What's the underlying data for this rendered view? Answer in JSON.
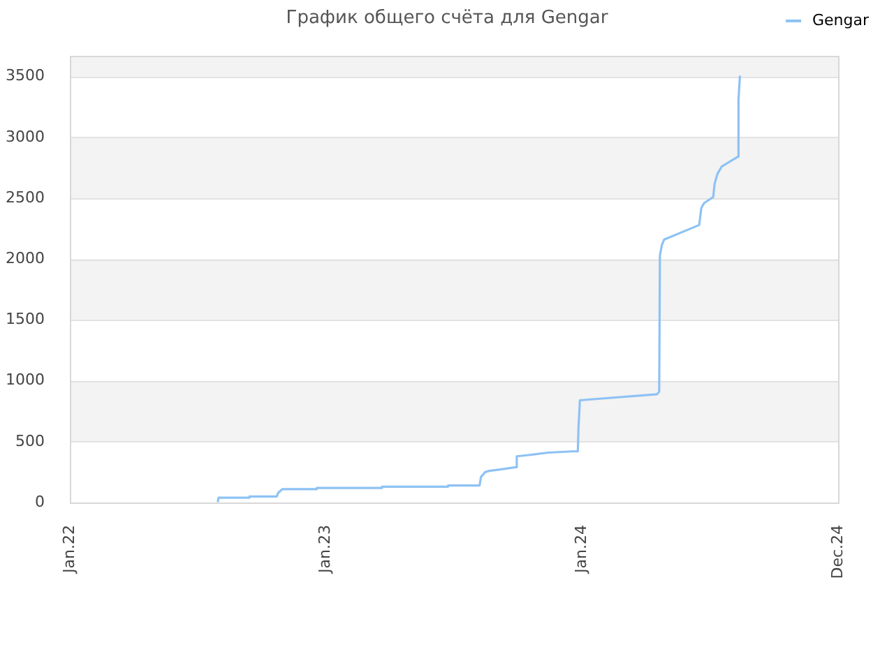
{
  "chart_data": {
    "type": "line",
    "title": "График общего счёта для Gengar",
    "xlim": [
      "2022-01-01",
      "2024-12-31"
    ],
    "xticks": [
      {
        "value": "2022-01-01",
        "label": "Jan.22"
      },
      {
        "value": "2023-01-01",
        "label": "Jan.23"
      },
      {
        "value": "2024-01-01",
        "label": "Jan.24"
      },
      {
        "value": "2024-12-31",
        "label": "Dec.24"
      }
    ],
    "ylim": [
      0,
      3670
    ],
    "yticks": [
      0,
      500,
      1000,
      1500,
      2000,
      2500,
      3000,
      3500
    ],
    "grid": "y",
    "legend": "top right",
    "marker": "none",
    "line_style": "solid",
    "series": [
      {
        "name": "Gengar",
        "color": "#8ec2f4",
        "x": [
          "2022-07-31",
          "2022-08-01",
          "2022-09-13",
          "2022-09-14",
          "2022-10-23",
          "2022-10-25",
          "2022-10-31",
          "2022-12-18",
          "2022-12-19",
          "2023-03-21",
          "2023-03-22",
          "2023-06-23",
          "2023-06-24",
          "2023-08-08",
          "2023-08-10",
          "2023-08-16",
          "2023-08-22",
          "2023-09-05",
          "2023-09-29",
          "2023-09-30",
          "2023-10-17",
          "2023-11-14",
          "2023-12-18",
          "2023-12-26",
          "2023-12-27",
          "2023-12-29",
          "2024-04-17",
          "2024-04-20",
          "2024-04-21",
          "2024-04-24",
          "2024-04-27",
          "2024-06-16",
          "2024-06-19",
          "2024-06-23",
          "2024-07-06",
          "2024-07-08",
          "2024-07-12",
          "2024-07-18",
          "2024-08-10",
          "2024-08-11",
          "2024-08-13"
        ],
        "values": [
          10,
          40,
          40,
          50,
          50,
          80,
          110,
          110,
          120,
          120,
          130,
          130,
          140,
          140,
          210,
          250,
          260,
          270,
          290,
          380,
          390,
          410,
          420,
          420,
          620,
          840,
          890,
          910,
          2030,
          2120,
          2160,
          2280,
          2420,
          2460,
          2510,
          2620,
          2700,
          2760,
          2840,
          3310,
          3500
        ]
      }
    ]
  }
}
